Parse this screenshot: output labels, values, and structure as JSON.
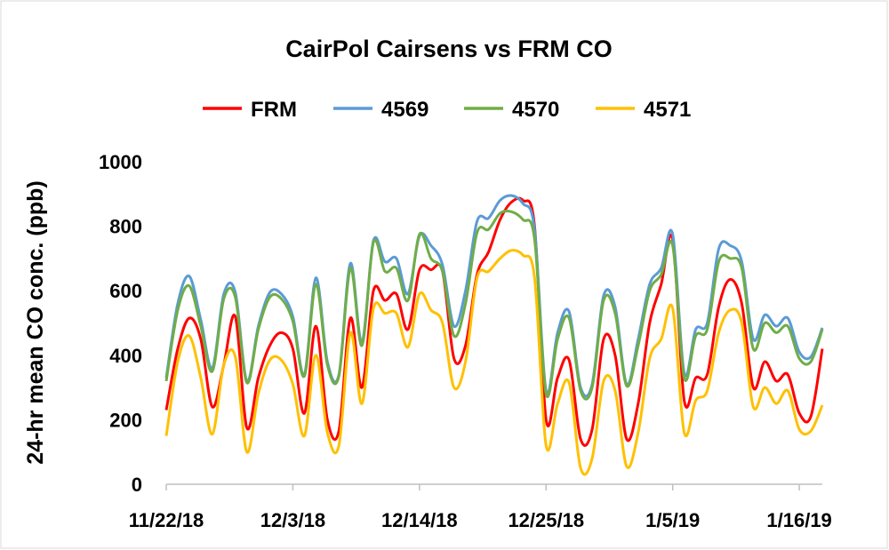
{
  "chart_data": {
    "type": "line",
    "title": "CairPol Cairsens vs FRM CO",
    "y_label": "24-hr mean CO conc. (ppb)",
    "x": [
      "11/22/18",
      "11/23/18",
      "11/24/18",
      "11/25/18",
      "11/26/18",
      "11/27/18",
      "11/28/18",
      "11/29/18",
      "11/30/18",
      "12/1/18",
      "12/2/18",
      "12/3/18",
      "12/4/18",
      "12/5/18",
      "12/6/18",
      "12/7/18",
      "12/8/18",
      "12/9/18",
      "12/10/18",
      "12/11/18",
      "12/12/18",
      "12/13/18",
      "12/14/18",
      "12/15/18",
      "12/16/18",
      "12/17/18",
      "12/18/18",
      "12/19/18",
      "12/20/18",
      "12/21/18",
      "12/22/18",
      "12/23/18",
      "12/24/18",
      "12/25/18",
      "12/26/18",
      "12/27/18",
      "12/28/18",
      "12/29/18",
      "12/30/18",
      "12/31/18",
      "1/1/19",
      "1/2/19",
      "1/3/19",
      "1/4/19",
      "1/5/19",
      "1/6/19",
      "1/7/19",
      "1/8/19",
      "1/9/19",
      "1/10/19",
      "1/11/19",
      "1/12/19",
      "1/13/19",
      "1/14/19",
      "1/15/19",
      "1/16/19",
      "1/17/19",
      "1/18/19"
    ],
    "series": [
      {
        "name": "FRM",
        "color": "#ff0000",
        "values": [
          230,
          420,
          515,
          450,
          240,
          370,
          520,
          175,
          330,
          430,
          470,
          420,
          220,
          490,
          200,
          165,
          515,
          300,
          600,
          570,
          590,
          480,
          665,
          665,
          660,
          390,
          430,
          650,
          720,
          820,
          875,
          880,
          800,
          200,
          330,
          385,
          140,
          170,
          450,
          400,
          140,
          250,
          500,
          620,
          760,
          260,
          330,
          340,
          550,
          635,
          560,
          300,
          380,
          320,
          340,
          220,
          210,
          420
        ]
      },
      {
        "name": "4569",
        "color": "#5b9bd5",
        "values": [
          330,
          560,
          645,
          510,
          360,
          590,
          595,
          320,
          490,
          595,
          590,
          520,
          340,
          640,
          380,
          340,
          685,
          440,
          755,
          690,
          700,
          590,
          770,
          740,
          680,
          490,
          600,
          815,
          825,
          880,
          895,
          870,
          790,
          290,
          470,
          535,
          300,
          310,
          585,
          550,
          310,
          450,
          620,
          670,
          775,
          345,
          480,
          500,
          730,
          740,
          690,
          450,
          525,
          490,
          515,
          410,
          395,
          485
        ]
      },
      {
        "name": "4570",
        "color": "#70ad47",
        "values": [
          320,
          540,
          615,
          490,
          350,
          575,
          580,
          315,
          480,
          580,
          575,
          505,
          335,
          620,
          370,
          335,
          670,
          430,
          750,
          660,
          670,
          570,
          775,
          700,
          660,
          460,
          560,
          780,
          790,
          840,
          845,
          820,
          760,
          280,
          450,
          515,
          290,
          300,
          570,
          530,
          305,
          430,
          600,
          650,
          740,
          330,
          460,
          480,
          690,
          700,
          670,
          420,
          500,
          470,
          490,
          390,
          380,
          480
        ]
      },
      {
        "name": "4571",
        "color": "#ffc000",
        "values": [
          150,
          380,
          460,
          330,
          155,
          370,
          395,
          100,
          280,
          385,
          385,
          310,
          150,
          400,
          160,
          120,
          470,
          250,
          545,
          530,
          530,
          425,
          590,
          540,
          500,
          300,
          380,
          640,
          660,
          700,
          725,
          710,
          640,
          120,
          250,
          315,
          50,
          80,
          320,
          290,
          55,
          160,
          390,
          450,
          545,
          160,
          260,
          290,
          470,
          540,
          500,
          240,
          300,
          250,
          290,
          170,
          165,
          245
        ]
      }
    ],
    "xlim": [
      "11/22/18",
      "1/18/19"
    ],
    "xticks": [
      "11/22/18",
      "12/3/18",
      "12/14/18",
      "12/25/18",
      "1/5/19",
      "1/16/19"
    ],
    "ylim": [
      0,
      1000
    ],
    "yticks": [
      0,
      200,
      400,
      600,
      800,
      1000
    ],
    "grid": false,
    "legend": "top"
  }
}
